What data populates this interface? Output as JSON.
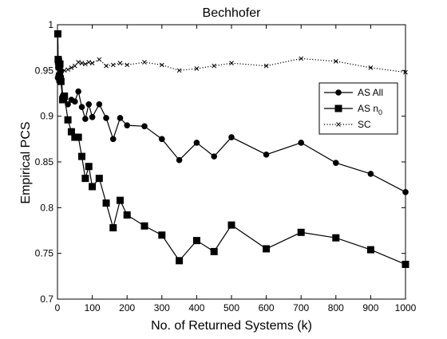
{
  "chart_data": {
    "type": "line",
    "title": "Bechhofer",
    "xlabel": "No. of Returned Systems (k)",
    "ylabel": "Empirical PCS",
    "xlim": [
      0,
      1000
    ],
    "ylim": [
      0.7,
      1.0
    ],
    "x_ticks": [
      0,
      100,
      200,
      300,
      400,
      500,
      600,
      700,
      800,
      900,
      1000
    ],
    "y_ticks": [
      0.7,
      0.75,
      0.8,
      0.85,
      0.9,
      0.95,
      1
    ],
    "x_tick_labels": [
      "0",
      "100",
      "200",
      "300",
      "400",
      "500",
      "600",
      "700",
      "800",
      "900",
      "1000"
    ],
    "y_tick_labels": [
      "0.7",
      "0.75",
      "0.8",
      "0.85",
      "0.9",
      "0.95",
      "1"
    ],
    "grid": false,
    "legend_position": "top-right",
    "series": [
      {
        "name": "AS All",
        "line_style": "solid",
        "marker": "circle",
        "color": "#000000",
        "x": [
          1,
          2,
          3,
          4,
          5,
          6,
          7,
          8,
          10,
          15,
          20,
          30,
          40,
          50,
          60,
          70,
          80,
          90,
          100,
          120,
          140,
          160,
          180,
          200,
          250,
          300,
          350,
          400,
          450,
          500,
          600,
          700,
          800,
          900,
          1000
        ],
        "y": [
          0.942,
          0.953,
          0.945,
          0.941,
          0.938,
          0.938,
          0.944,
          0.939,
          0.949,
          0.922,
          0.918,
          0.913,
          0.918,
          0.916,
          0.927,
          0.91,
          0.897,
          0.913,
          0.899,
          0.913,
          0.898,
          0.875,
          0.898,
          0.89,
          0.889,
          0.875,
          0.852,
          0.871,
          0.856,
          0.877,
          0.858,
          0.871,
          0.849,
          0.837,
          0.817
        ]
      },
      {
        "name": "AS n_0",
        "line_style": "solid",
        "marker": "square",
        "color": "#000000",
        "x": [
          1,
          2,
          3,
          4,
          5,
          6,
          7,
          8,
          10,
          15,
          20,
          30,
          40,
          50,
          60,
          70,
          80,
          90,
          100,
          120,
          140,
          160,
          180,
          200,
          250,
          300,
          350,
          400,
          450,
          500,
          600,
          700,
          800,
          900,
          1000
        ],
        "y": [
          0.99,
          0.962,
          0.96,
          0.957,
          0.954,
          0.944,
          0.957,
          0.941,
          0.938,
          0.918,
          0.922,
          0.896,
          0.883,
          0.877,
          0.877,
          0.856,
          0.832,
          0.845,
          0.823,
          0.832,
          0.805,
          0.778,
          0.808,
          0.792,
          0.78,
          0.77,
          0.742,
          0.764,
          0.752,
          0.781,
          0.755,
          0.773,
          0.767,
          0.754,
          0.738
        ]
      },
      {
        "name": "SC",
        "line_style": "dotted",
        "marker": "x",
        "color": "#000000",
        "x": [
          1,
          5,
          10,
          20,
          30,
          40,
          50,
          60,
          70,
          80,
          90,
          100,
          120,
          140,
          160,
          180,
          200,
          250,
          300,
          350,
          400,
          450,
          500,
          600,
          700,
          800,
          900,
          1000
        ],
        "y": [
          0.962,
          0.955,
          0.953,
          0.95,
          0.951,
          0.953,
          0.955,
          0.959,
          0.958,
          0.957,
          0.959,
          0.958,
          0.962,
          0.955,
          0.956,
          0.958,
          0.956,
          0.959,
          0.956,
          0.95,
          0.952,
          0.955,
          0.958,
          0.955,
          0.963,
          0.96,
          0.953,
          0.948
        ]
      }
    ],
    "legend_entries": [
      "AS All",
      "AS n_0",
      "SC"
    ]
  }
}
